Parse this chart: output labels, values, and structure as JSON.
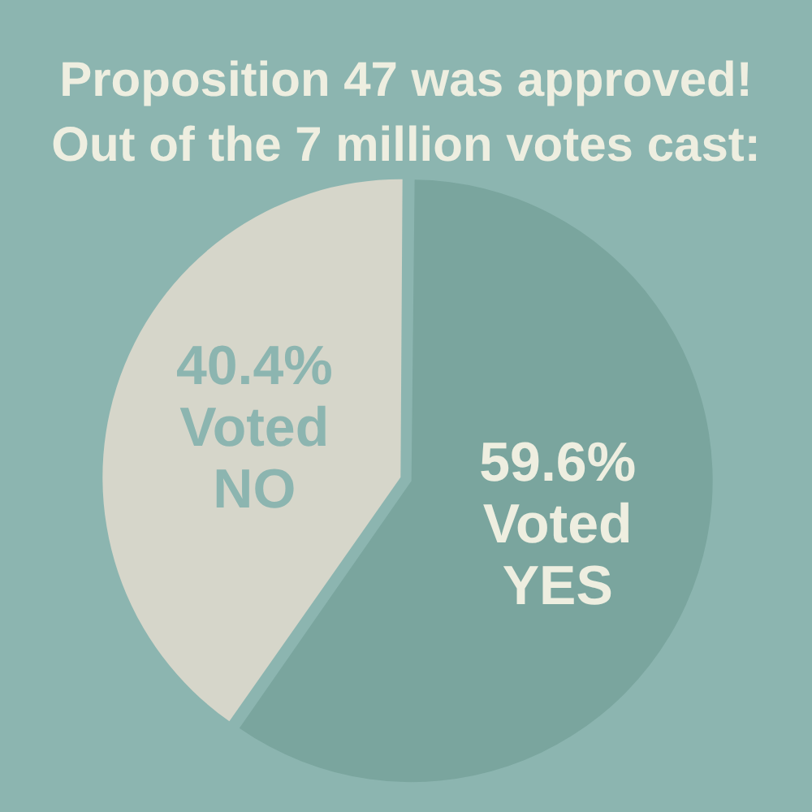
{
  "chart_data": {
    "type": "pie",
    "title": "Proposition 47 was approved!",
    "subtitle": "Out of the 7 million votes cast:",
    "categories": [
      "Voted NO",
      "Voted YES"
    ],
    "values": [
      40.4,
      59.6
    ],
    "colors": [
      "#d6d6ca",
      "#7aa59e"
    ],
    "value_labels": [
      "40.4%",
      "59.6%"
    ],
    "legend": false
  }
}
